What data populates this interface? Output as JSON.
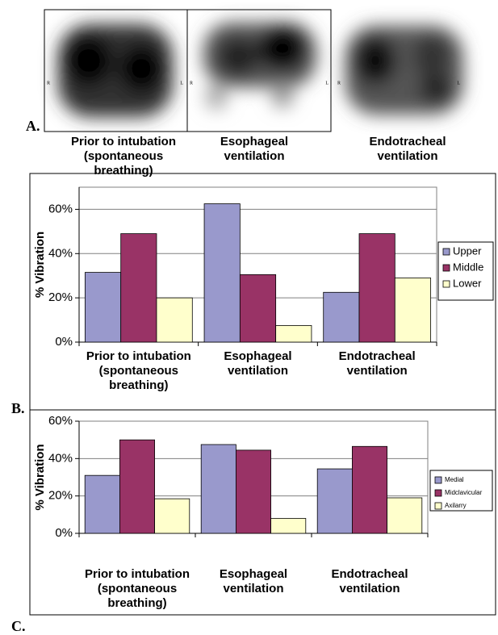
{
  "panel_a": {
    "label": "A.",
    "images": [
      {
        "caption": "Prior to intubation (spontaneous breathing)",
        "left": "R",
        "right": "L"
      },
      {
        "caption": "Esophageal ventilation",
        "left": "R",
        "right": "L"
      },
      {
        "caption": "Endotracheal ventilation",
        "left": "R",
        "right": "L"
      }
    ]
  },
  "chart_data": [
    {
      "type": "bar",
      "panel_label": "B.",
      "y_label": "% Vibration",
      "categories": [
        "Prior to intubation (spontaneous breathing)",
        "Esophageal ventilation",
        "Endotracheal ventilation"
      ],
      "series": [
        {
          "name": "Upper",
          "color": "#9999cc",
          "values": [
            31.5,
            62.5,
            22.5
          ]
        },
        {
          "name": "Middle",
          "color": "#993366",
          "values": [
            49,
            30.5,
            49
          ]
        },
        {
          "name": "Lower",
          "color": "#ffffcc",
          "values": [
            20,
            7.5,
            29
          ]
        }
      ],
      "ylim": [
        0,
        70
      ],
      "yticks": [
        {
          "value": 0,
          "label": "0%"
        },
        {
          "value": 20,
          "label": "20%"
        },
        {
          "value": 40,
          "label": "40%"
        },
        {
          "value": 60,
          "label": "60%"
        }
      ],
      "grid": true,
      "legend": "right"
    },
    {
      "type": "bar",
      "panel_label": "C.",
      "y_label": "% Vibration",
      "categories": [
        "Prior to intubation (spontaneous breathing)",
        "Esophageal ventilation",
        "Endotracheal ventilation"
      ],
      "series": [
        {
          "name": "Medial",
          "color": "#9999cc",
          "values": [
            31,
            47.5,
            34.5
          ]
        },
        {
          "name": "Midclavicular",
          "color": "#993366",
          "values": [
            50,
            44.5,
            46.5
          ]
        },
        {
          "name": "Axilarry",
          "color": "#ffffcc",
          "values": [
            18.5,
            8,
            19
          ]
        }
      ],
      "ylim": [
        0,
        60
      ],
      "yticks": [
        {
          "value": 0,
          "label": "0%"
        },
        {
          "value": 20,
          "label": "20%"
        },
        {
          "value": 40,
          "label": "40%"
        },
        {
          "value": 60,
          "label": "60%"
        }
      ],
      "grid": true,
      "legend": "right"
    }
  ]
}
